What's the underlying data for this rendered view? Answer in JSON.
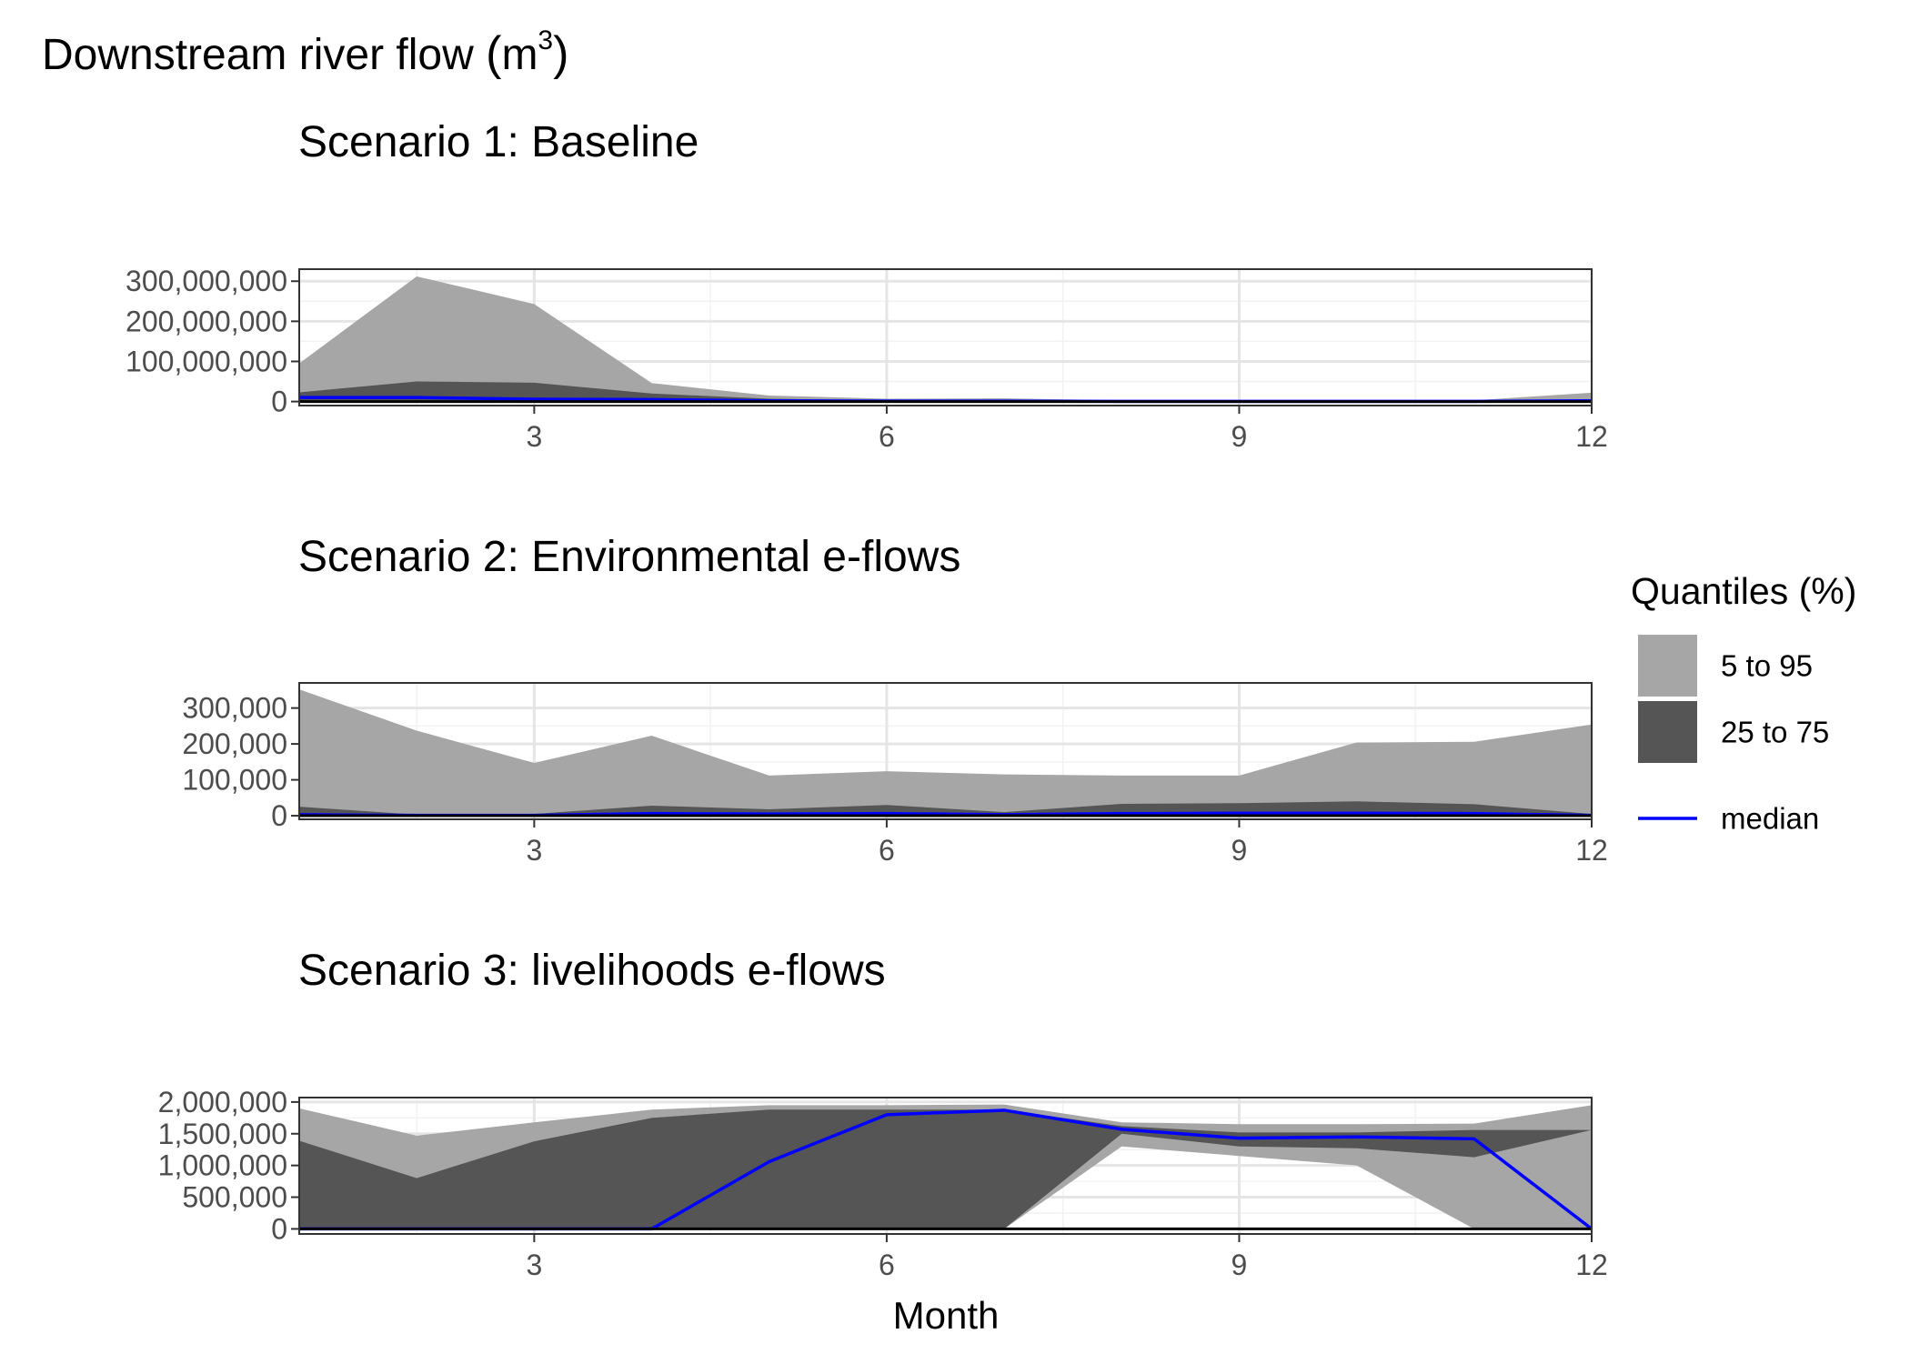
{
  "figure": {
    "title_text": "Downstream river flow ",
    "title_unit_base": "m",
    "title_unit_exp": "3",
    "xlabel": "Month"
  },
  "legend": {
    "title": "Quantiles (%)",
    "items": [
      {
        "label": "5 to 95",
        "kind": "fill",
        "color": "#A6A6A6"
      },
      {
        "label": "25 to 75",
        "kind": "fill",
        "color": "#555555"
      },
      {
        "label": "median",
        "kind": "line",
        "color": "#0000FF"
      }
    ]
  },
  "colors": {
    "outer_band": "#A6A6A6",
    "inner_band": "#555555",
    "median": "#0000FF",
    "grid_major": "#E5E5E5",
    "grid_minor": "#F2F2F2"
  },
  "chart_data": [
    {
      "type": "area",
      "title": "Scenario 1: Baseline",
      "x": [
        1,
        2,
        3,
        4,
        5,
        6,
        7,
        8,
        9,
        10,
        11,
        12
      ],
      "xlim": [
        1,
        12
      ],
      "xticks": [
        3,
        6,
        9,
        12
      ],
      "ylim": [
        -10000000,
        330000000
      ],
      "yticks": [
        0,
        100000000,
        200000000,
        300000000
      ],
      "ytick_labels": [
        "0",
        "100,000,000",
        "200,000,000",
        "300,000,000"
      ],
      "grid": true,
      "series": [
        {
          "name": "5 to 95",
          "kind": "band",
          "low": [
            0,
            0,
            0,
            0,
            0,
            0,
            0,
            0,
            0,
            0,
            0,
            0
          ],
          "high": [
            95000000,
            312000000,
            243000000,
            46000000,
            15000000,
            7000000,
            8000000,
            3000000,
            3000000,
            3000000,
            3000000,
            22000000
          ]
        },
        {
          "name": "25 to 75",
          "kind": "band",
          "low": [
            1000000,
            1000000,
            1000000,
            1000000,
            500000,
            300000,
            300000,
            200000,
            200000,
            200000,
            200000,
            500000
          ],
          "high": [
            23000000,
            50000000,
            47000000,
            20000000,
            7000000,
            3000000,
            4000000,
            1500000,
            1500000,
            1500000,
            1500000,
            4000000
          ]
        },
        {
          "name": "median",
          "kind": "line",
          "values": [
            10000000,
            10000000,
            6000000,
            5000000,
            2000000,
            1000000,
            1000000,
            500000,
            500000,
            500000,
            500000,
            2000000
          ]
        }
      ]
    },
    {
      "type": "area",
      "title": "Scenario 2: Environmental e-flows",
      "x": [
        1,
        2,
        3,
        4,
        5,
        6,
        7,
        8,
        9,
        10,
        11,
        12
      ],
      "xlim": [
        1,
        12
      ],
      "xticks": [
        3,
        6,
        9,
        12
      ],
      "ylim": [
        -10000,
        370000
      ],
      "yticks": [
        0,
        100000,
        200000,
        300000
      ],
      "ytick_labels": [
        "0",
        "100,000",
        "200,000",
        "300,000"
      ],
      "grid": true,
      "series": [
        {
          "name": "5 to 95",
          "kind": "band",
          "low": [
            0,
            0,
            0,
            0,
            0,
            0,
            0,
            0,
            0,
            0,
            0,
            0
          ],
          "high": [
            352000,
            237000,
            147000,
            223000,
            112000,
            124000,
            115000,
            112000,
            112000,
            204000,
            206000,
            254000
          ]
        },
        {
          "name": "25 to 75",
          "kind": "band",
          "low": [
            0,
            0,
            0,
            0,
            0,
            0,
            0,
            0,
            0,
            0,
            0,
            0
          ],
          "high": [
            25000,
            3000,
            5000,
            28000,
            18000,
            30000,
            10000,
            33000,
            35000,
            40000,
            32000,
            5000
          ]
        },
        {
          "name": "median",
          "kind": "line",
          "values": [
            3000,
            1000,
            1000,
            6000,
            5000,
            6000,
            3000,
            6000,
            7000,
            7000,
            6000,
            1000
          ]
        }
      ]
    },
    {
      "type": "area",
      "title": "Scenario 3: livelihoods e-flows",
      "x": [
        1,
        2,
        3,
        4,
        5,
        6,
        7,
        8,
        9,
        10,
        11,
        12
      ],
      "xlim": [
        1,
        12
      ],
      "xticks": [
        3,
        6,
        9,
        12
      ],
      "ylim": [
        -80000,
        2070000
      ],
      "yticks": [
        0,
        500000,
        1000000,
        1500000,
        2000000
      ],
      "ytick_labels": [
        "0",
        "500,000",
        "1,000,000",
        "1,500,000",
        "2,000,000"
      ],
      "grid": true,
      "series": [
        {
          "name": "5 to 95",
          "kind": "band",
          "low": [
            0,
            0,
            0,
            0,
            0,
            0,
            0,
            1300000,
            1150000,
            1000000,
            0,
            0
          ],
          "high": [
            1900000,
            1470000,
            1680000,
            1880000,
            1950000,
            1950000,
            1960000,
            1680000,
            1650000,
            1650000,
            1660000,
            1950000
          ]
        },
        {
          "name": "25 to 75",
          "kind": "band",
          "low": [
            0,
            0,
            0,
            0,
            0,
            0,
            0,
            1500000,
            1300000,
            1270000,
            1130000,
            1560000
          ],
          "high": [
            1390000,
            800000,
            1380000,
            1750000,
            1880000,
            1880000,
            1880000,
            1620000,
            1520000,
            1520000,
            1560000,
            1560000
          ]
        },
        {
          "name": "median",
          "kind": "line",
          "values": [
            0,
            0,
            0,
            0,
            1060000,
            1800000,
            1870000,
            1570000,
            1430000,
            1450000,
            1420000,
            0
          ]
        }
      ]
    }
  ]
}
